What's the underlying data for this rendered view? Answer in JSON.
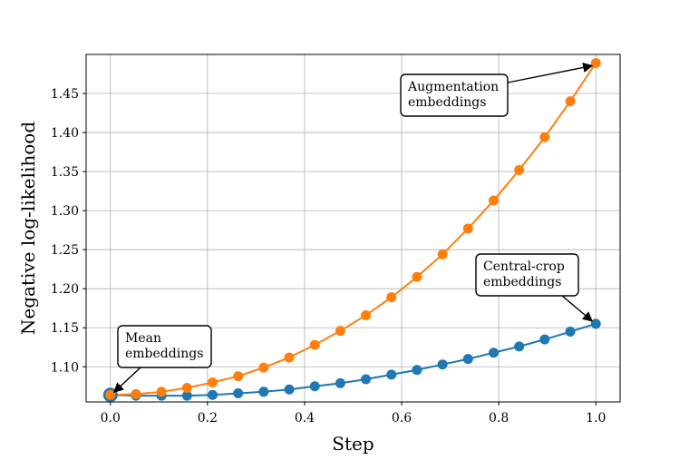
{
  "chart_data": {
    "type": "line",
    "xlabel": "Step",
    "ylabel": "Negative log-likelihood",
    "xlim": [
      -0.05,
      1.05
    ],
    "ylim": [
      1.055,
      1.5
    ],
    "xticks": [
      "0.0",
      "0.2",
      "0.4",
      "0.6",
      "0.8",
      "1.0"
    ],
    "yticks": [
      "1.10",
      "1.15",
      "1.20",
      "1.25",
      "1.30",
      "1.35",
      "1.40",
      "1.45"
    ],
    "grid": true,
    "x": [
      0.0,
      0.0526,
      0.1053,
      0.1579,
      0.2105,
      0.2632,
      0.3158,
      0.3684,
      0.4211,
      0.4737,
      0.5263,
      0.5789,
      0.6316,
      0.6842,
      0.7368,
      0.7895,
      0.8421,
      0.8947,
      0.9474,
      1.0
    ],
    "series": [
      {
        "color": "#1f77b4",
        "values": [
          1.064,
          1.063,
          1.063,
          1.063,
          1.064,
          1.066,
          1.068,
          1.071,
          1.075,
          1.079,
          1.084,
          1.09,
          1.096,
          1.103,
          1.11,
          1.118,
          1.126,
          1.135,
          1.145,
          1.155
        ]
      },
      {
        "color": "#ff7f0e",
        "values": [
          1.064,
          1.065,
          1.068,
          1.073,
          1.08,
          1.088,
          1.099,
          1.112,
          1.128,
          1.146,
          1.166,
          1.189,
          1.215,
          1.244,
          1.277,
          1.313,
          1.352,
          1.394,
          1.44,
          1.489
        ]
      }
    ],
    "annotations": [
      {
        "lines": [
          "Mean",
          "embeddings"
        ],
        "target": {
          "x": 0.0,
          "y": 1.064
        }
      },
      {
        "lines": [
          "Augmentation",
          "embeddings"
        ],
        "target": {
          "x": 1.0,
          "y": 1.489
        }
      },
      {
        "lines": [
          "Central-crop",
          "embeddings"
        ],
        "target": {
          "x": 1.0,
          "y": 1.155
        }
      }
    ]
  }
}
